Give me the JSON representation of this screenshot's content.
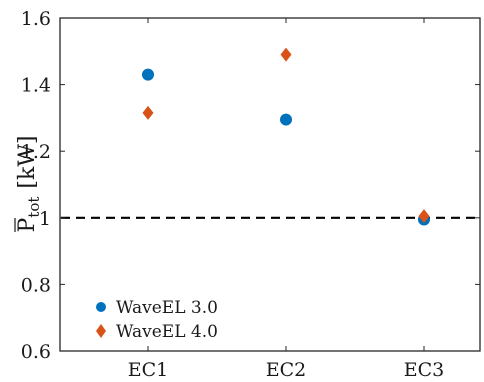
{
  "chart_data": {
    "type": "scatter",
    "categories": [
      "EC1",
      "EC2",
      "EC3"
    ],
    "ylabel": {
      "main": "P",
      "sub": "tot",
      "unit": "[kW]"
    },
    "ylim": [
      0.6,
      1.6
    ],
    "yticks": [
      "0.6",
      "0.8",
      "1",
      "1.2",
      "1.4",
      "1.6"
    ],
    "reference_line": {
      "y": 1.0,
      "style": "dashed",
      "color": "#000000"
    },
    "grid": false,
    "legend_position": "bottom-left",
    "series": [
      {
        "name": "WaveEL 3.0",
        "marker": "circle",
        "color": "#0072BD",
        "values": [
          1.43,
          1.295,
          0.995
        ]
      },
      {
        "name": "WaveEL 4.0",
        "marker": "diamond",
        "color": "#D95319",
        "values": [
          1.315,
          1.49,
          1.005
        ]
      }
    ]
  }
}
